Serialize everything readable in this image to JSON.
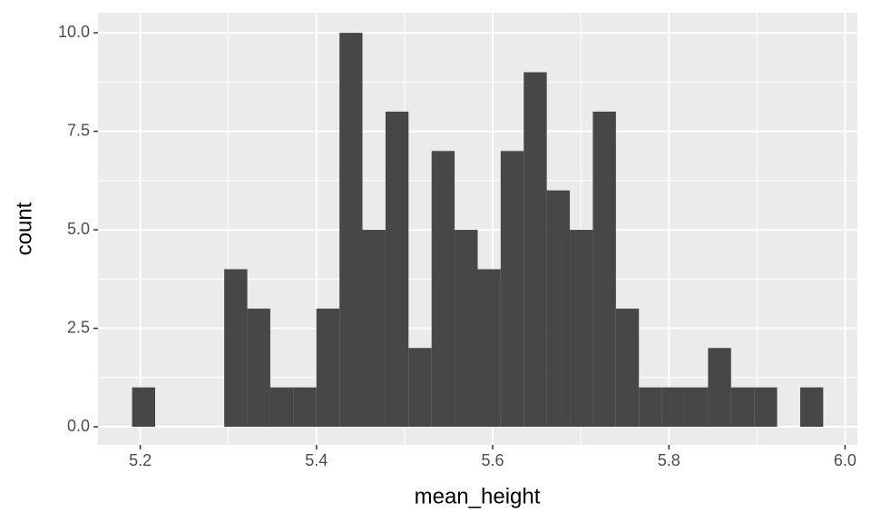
{
  "chart_data": {
    "type": "histogram",
    "x_label": "mean_height",
    "y_label": "count",
    "bins": [
      5.1907,
      5.2169,
      5.243,
      5.2692,
      5.2953,
      5.3215,
      5.3476,
      5.3738,
      5.3999,
      5.4261,
      5.4522,
      5.4784,
      5.5045,
      5.5307,
      5.5568,
      5.583,
      5.6091,
      5.6353,
      5.6614,
      5.6876,
      5.7137,
      5.7399,
      5.766,
      5.7922,
      5.8183,
      5.8445,
      5.8706,
      5.8968,
      5.9229,
      5.9491,
      5.9752
    ],
    "values": [
      1,
      0,
      0,
      0,
      4,
      3,
      1,
      1,
      3,
      10,
      5,
      8,
      2,
      7,
      5,
      4,
      7,
      9,
      6,
      5,
      8,
      3,
      1,
      1,
      1,
      2,
      1,
      1,
      0,
      1
    ],
    "color": "#474747",
    "xlim": [
      5.152,
      6.014
    ],
    "ylim": [
      -0.46,
      10.51
    ],
    "xticks": [
      5.2,
      5.4,
      5.6,
      5.8,
      {
        "value": 6,
        "label": "6.0"
      }
    ],
    "yticks": [
      {
        "value": 0,
        "label": "0.0"
      },
      2.5,
      {
        "value": 5,
        "label": "5.0"
      },
      7.5,
      {
        "value": 10,
        "label": "10.0"
      }
    ],
    "grid": true,
    "minor_grid": true
  }
}
